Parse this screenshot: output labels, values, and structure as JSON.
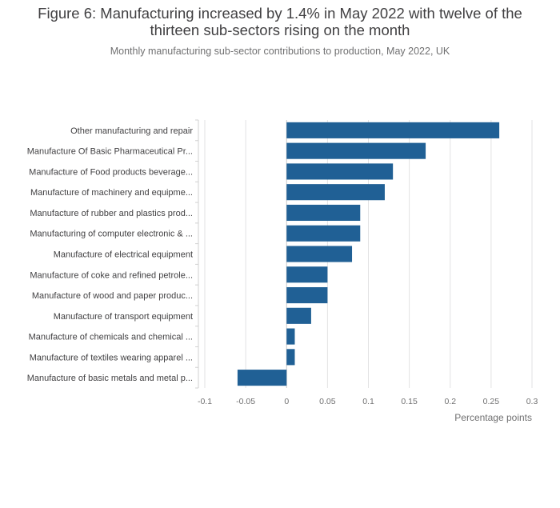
{
  "title_line1": "Figure 6: Manufacturing increased by 1.4% in May 2022 with twelve of the",
  "title_line2": "thirteen sub-sectors rising on the month",
  "subtitle": "Monthly manufacturing sub-sector contributions to production, May 2022, UK",
  "chart_data": {
    "type": "bar",
    "orientation": "horizontal",
    "categories": [
      "Other manufacturing and repair",
      "Manufacture Of Basic Pharmaceutical Pr...",
      "Manufacture of Food products beverage...",
      "Manufacture of machinery and equipme...",
      "Manufacture of rubber and plastics prod...",
      "Manufacturing of computer electronic & ...",
      "Manufacture of electrical equipment",
      "Manufacture of coke and refined petrole...",
      "Manufacture of wood and paper produc...",
      "Manufacture of transport equipment",
      "Manufacture of chemicals and chemical ...",
      "Manufacture of textiles wearing apparel ...",
      "Manufacture of basic metals and metal p..."
    ],
    "values": [
      0.26,
      0.17,
      0.13,
      0.12,
      0.09,
      0.09,
      0.08,
      0.05,
      0.05,
      0.03,
      0.01,
      0.01,
      -0.06
    ],
    "xlim": [
      -0.1,
      0.3
    ],
    "xticks": [
      -0.1,
      -0.05,
      0,
      0.05,
      0.1,
      0.15,
      0.2,
      0.25,
      0.3
    ],
    "xtick_labels": [
      "-0.1",
      "-0.05",
      "0",
      "0.05",
      "0.1",
      "0.15",
      "0.2",
      "0.25",
      "0.3"
    ],
    "xlabel": "Percentage points",
    "ylabel": "",
    "grid": true,
    "bar_color": "#206095"
  }
}
